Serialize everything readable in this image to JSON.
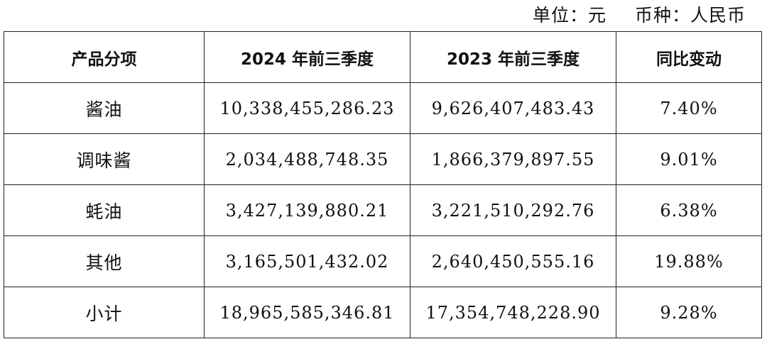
{
  "unit": {
    "unit_text": "单位：元",
    "currency_text": "币种：人民币"
  },
  "table": {
    "headers": [
      "产品分项",
      "2024 年前三季度",
      "2023 年前三季度",
      "同比变动"
    ],
    "rows": [
      {
        "name": "酱油",
        "y2024": "10,338,455,286.23",
        "y2023": "9,626,407,483.43",
        "change": "7.40%"
      },
      {
        "name": "调味酱",
        "y2024": "2,034,488,748.35",
        "y2023": "1,866,379,897.55",
        "change": "9.01%"
      },
      {
        "name": "蚝油",
        "y2024": "3,427,139,880.21",
        "y2023": "3,221,510,292.76",
        "change": "6.38%"
      },
      {
        "name": "其他",
        "y2024": "3,165,501,432.02",
        "y2023": "2,640,450,555.16",
        "change": "19.88%"
      },
      {
        "name": "小计",
        "y2024": "18,965,585,346.81",
        "y2023": "17,354,748,228.90",
        "change": "9.28%"
      }
    ]
  }
}
